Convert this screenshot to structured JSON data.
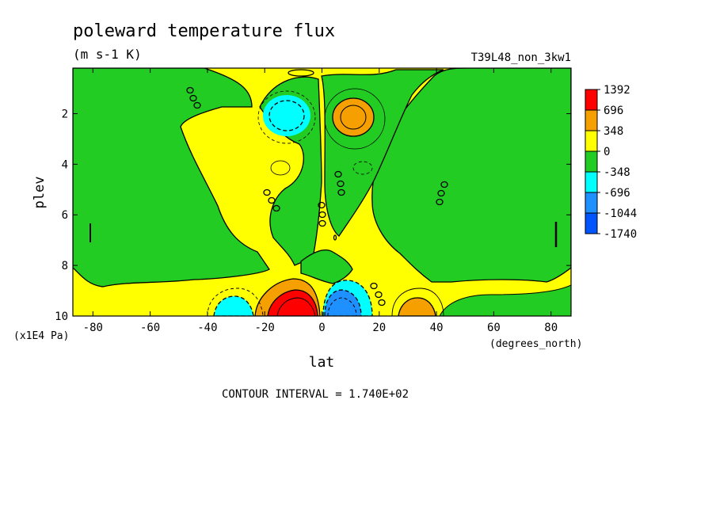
{
  "chart_data": {
    "type": "heatmap",
    "title": "poleward temperature flux",
    "units": "(m s-1 K)",
    "run_label": "T39L48_non_3kw1",
    "xlabel": "lat",
    "xunits": "(degrees_north)",
    "ylabel": "plev",
    "yunits": "(x1E4 Pa)",
    "xlim": [
      -87,
      87
    ],
    "ylim": [
      10,
      0.2
    ],
    "x_ticks": [
      -80,
      -60,
      -40,
      -20,
      0,
      20,
      40,
      60,
      80
    ],
    "x_tick_labels": [
      "-80",
      "-60",
      "-40",
      "-20",
      "0",
      "20",
      "40",
      "60",
      "80"
    ],
    "y_ticks": [
      2,
      4,
      6,
      8,
      10
    ],
    "y_tick_labels": [
      "2",
      "4",
      "6",
      "8",
      "10"
    ],
    "contour_interval_text": "CONTOUR INTERVAL = 1.740E+02",
    "colorbar": {
      "levels": [
        "1392",
        "696",
        "348",
        "0",
        "-348",
        "-696",
        "-1044",
        "-1740"
      ],
      "colors": [
        "#ff0000",
        "#f5a000",
        "#ffff00",
        "#22cc22",
        "#00ffff",
        "#1e90ff",
        "#0055ff"
      ]
    },
    "field_approx": {
      "background_value": 100,
      "features": [
        {
          "lat": -10,
          "plev": 2.0,
          "value": -420
        },
        {
          "lat": 10,
          "plev": 2.0,
          "value": 400
        },
        {
          "lat": -8,
          "plev": 9.6,
          "value": 1400
        },
        {
          "lat": 7,
          "plev": 9.6,
          "value": -1040
        },
        {
          "lat": -35,
          "plev": 9.6,
          "value": -400
        },
        {
          "lat": 33,
          "plev": 9.6,
          "value": 380
        }
      ]
    }
  }
}
